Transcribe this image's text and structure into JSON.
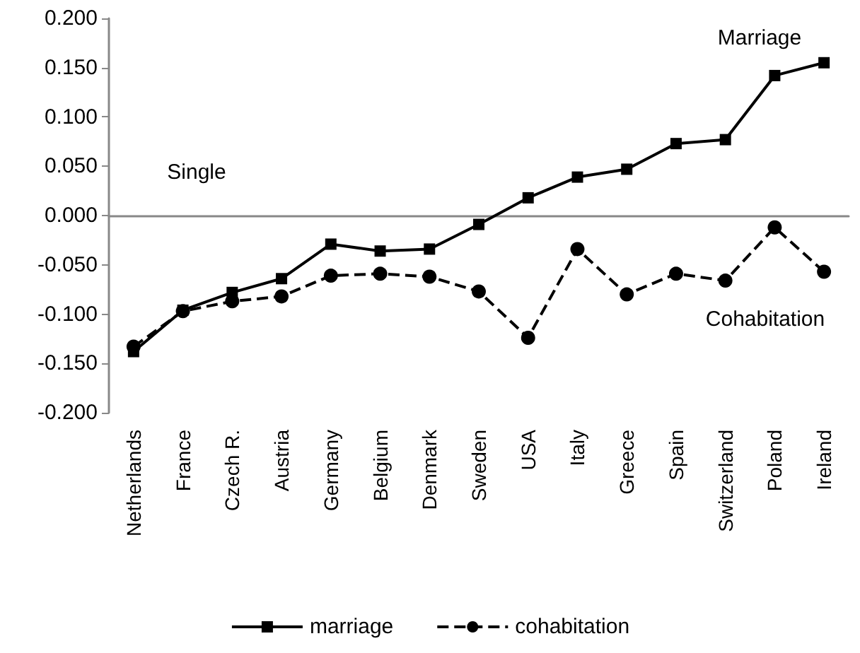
{
  "chart_data": {
    "type": "line",
    "categories": [
      "Netherlands",
      "France",
      "Czech R.",
      "Austria",
      "Germany",
      "Belgium",
      "Denmark",
      "Sweden",
      "USA",
      "Italy",
      "Greece",
      "Spain",
      "Switzerland",
      "Poland",
      "Ireland"
    ],
    "series": [
      {
        "name": "marriage",
        "color": "#000000",
        "marker": "square",
        "line_style": "solid",
        "values": [
          -0.138,
          -0.096,
          -0.078,
          -0.064,
          -0.029,
          -0.036,
          -0.034,
          -0.009,
          0.018,
          0.039,
          0.047,
          0.073,
          0.077,
          0.142,
          0.155
        ]
      },
      {
        "name": "cohabitation",
        "color": "#000000",
        "marker": "circle",
        "line_style": "dashed",
        "values": [
          -0.133,
          -0.097,
          -0.087,
          -0.082,
          -0.061,
          -0.059,
          -0.062,
          -0.077,
          -0.124,
          -0.034,
          -0.08,
          -0.059,
          -0.066,
          -0.012,
          -0.057
        ]
      }
    ],
    "ylim": [
      -0.2,
      0.2
    ],
    "yticks": [
      {
        "value": -0.2,
        "label": "-0.200"
      },
      {
        "value": -0.15,
        "label": "-0.150"
      },
      {
        "value": -0.1,
        "label": "-0.100"
      },
      {
        "value": -0.05,
        "label": "-0.050"
      },
      {
        "value": 0,
        "label": "0.000"
      },
      {
        "value": 0.05,
        "label": "0.050"
      },
      {
        "value": 0.1,
        "label": "0.100"
      },
      {
        "value": 0.15,
        "label": "0.150"
      },
      {
        "value": 0.2,
        "label": "0.200"
      }
    ],
    "annotations": [
      "Single",
      "Marriage",
      "Cohabitation"
    ],
    "legend": "bottom"
  }
}
